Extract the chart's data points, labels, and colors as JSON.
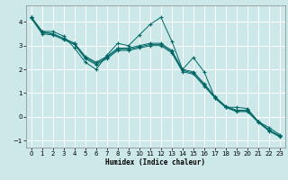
{
  "xlabel": "Humidex (Indice chaleur)",
  "bg_color": "#cce8e8",
  "line_color": "#006666",
  "grid_color": "#ffffff",
  "xlim": [
    -0.5,
    23.5
  ],
  "ylim": [
    -1.3,
    4.7
  ],
  "yticks": [
    -1,
    0,
    1,
    2,
    3,
    4
  ],
  "xticks": [
    0,
    1,
    2,
    3,
    4,
    5,
    6,
    7,
    8,
    9,
    10,
    11,
    12,
    13,
    14,
    15,
    16,
    17,
    18,
    19,
    20,
    21,
    22,
    23
  ],
  "series_jagged": [
    4.2,
    3.6,
    3.6,
    3.4,
    2.9,
    2.3,
    2.0,
    2.6,
    3.1,
    3.0,
    3.45,
    3.9,
    4.2,
    3.2,
    2.0,
    2.5,
    1.9,
    0.8,
    0.4,
    0.4,
    0.35,
    -0.2,
    -0.45,
    -0.75
  ],
  "series_linear1": [
    4.2,
    3.6,
    3.5,
    3.3,
    3.1,
    2.55,
    2.3,
    2.55,
    2.9,
    2.9,
    3.0,
    3.1,
    3.1,
    2.8,
    2.0,
    1.9,
    1.4,
    0.85,
    0.45,
    0.28,
    0.28,
    -0.18,
    -0.55,
    -0.8
  ],
  "series_linear2": [
    4.2,
    3.55,
    3.5,
    3.3,
    3.1,
    2.5,
    2.25,
    2.5,
    2.85,
    2.85,
    2.95,
    3.05,
    3.05,
    2.75,
    1.95,
    1.85,
    1.35,
    0.82,
    0.42,
    0.25,
    0.25,
    -0.2,
    -0.57,
    -0.82
  ],
  "series_linear3": [
    4.15,
    3.5,
    3.45,
    3.25,
    3.05,
    2.45,
    2.2,
    2.45,
    2.8,
    2.8,
    2.9,
    3.0,
    3.0,
    2.7,
    1.9,
    1.8,
    1.3,
    0.79,
    0.39,
    0.22,
    0.22,
    -0.23,
    -0.6,
    -0.85
  ]
}
